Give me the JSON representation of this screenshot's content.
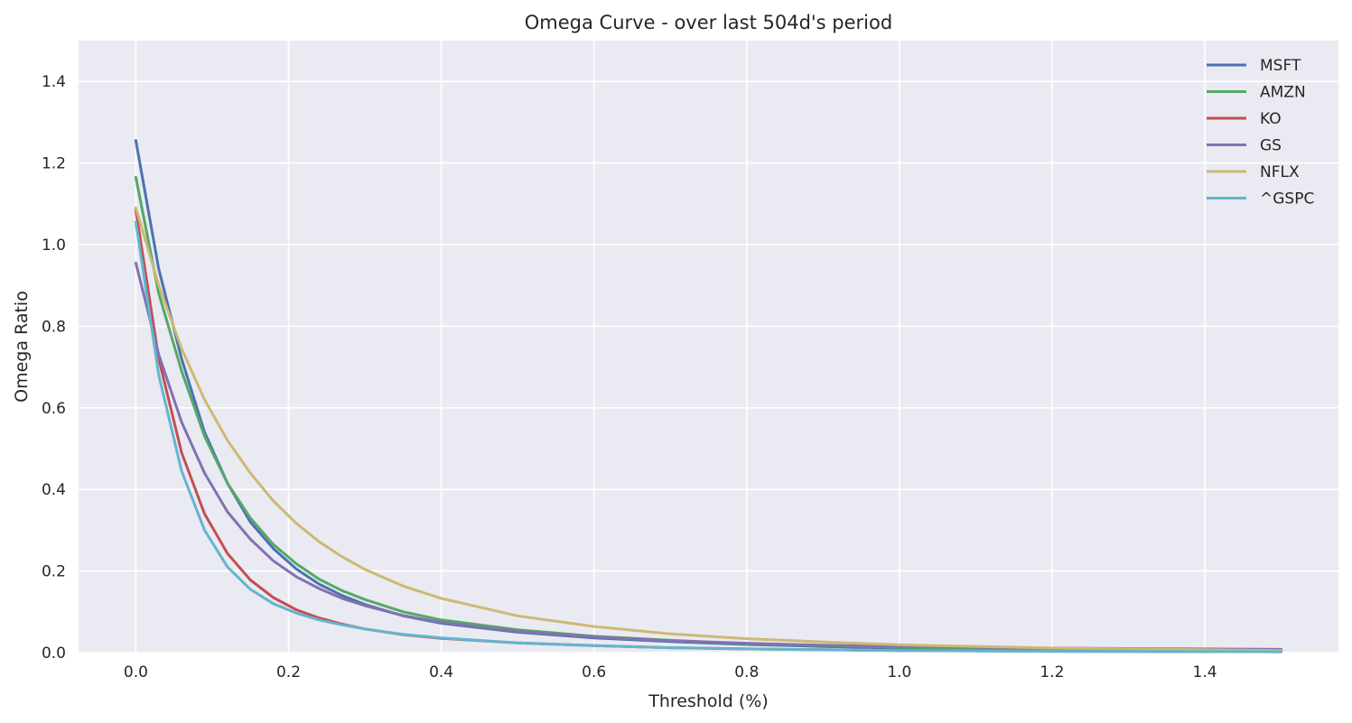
{
  "chart_data": {
    "type": "line",
    "title": "Omega Curve - over last 504d's period",
    "xlabel": "Threshold (%)",
    "ylabel": "Omega Ratio",
    "xlim": [
      -0.075,
      1.575
    ],
    "ylim": [
      0,
      1.5
    ],
    "xticks": [
      0.0,
      0.2,
      0.4,
      0.6,
      0.8,
      1.0,
      1.2,
      1.4
    ],
    "xtick_labels": [
      "0.0",
      "0.2",
      "0.4",
      "0.6",
      "0.8",
      "1.0",
      "1.2",
      "1.4"
    ],
    "yticks": [
      0.0,
      0.2,
      0.4,
      0.6,
      0.8,
      1.0,
      1.2,
      1.4
    ],
    "ytick_labels": [
      "0.0",
      "0.2",
      "0.4",
      "0.6",
      "0.8",
      "1.0",
      "1.2",
      "1.4"
    ],
    "grid": true,
    "background": "#eaeaf2",
    "legend_position": "top-right",
    "x": [
      0.0,
      0.03,
      0.06,
      0.09,
      0.12,
      0.15,
      0.18,
      0.21,
      0.24,
      0.27,
      0.3,
      0.35,
      0.4,
      0.5,
      0.6,
      0.7,
      0.8,
      0.9,
      1.0,
      1.2,
      1.5
    ],
    "series": [
      {
        "name": "MSFT",
        "color": "#4c72b0",
        "values": [
          1.255,
          0.94,
          0.72,
          0.54,
          0.415,
          0.32,
          0.255,
          0.205,
          0.168,
          0.14,
          0.118,
          0.09,
          0.072,
          0.05,
          0.036,
          0.027,
          0.02,
          0.015,
          0.011,
          0.007,
          0.004
        ]
      },
      {
        "name": "AMZN",
        "color": "#55a868",
        "values": [
          1.165,
          0.88,
          0.69,
          0.53,
          0.415,
          0.33,
          0.265,
          0.218,
          0.18,
          0.152,
          0.13,
          0.1,
          0.08,
          0.056,
          0.04,
          0.03,
          0.022,
          0.017,
          0.013,
          0.008,
          0.005
        ]
      },
      {
        "name": "KO",
        "color": "#c44e52",
        "values": [
          1.085,
          0.72,
          0.49,
          0.34,
          0.243,
          0.178,
          0.135,
          0.105,
          0.085,
          0.07,
          0.058,
          0.044,
          0.035,
          0.024,
          0.017,
          0.012,
          0.009,
          0.007,
          0.005,
          0.003,
          0.002
        ]
      },
      {
        "name": "GS",
        "color": "#8172b2",
        "values": [
          0.955,
          0.73,
          0.565,
          0.44,
          0.345,
          0.278,
          0.225,
          0.186,
          0.157,
          0.133,
          0.115,
          0.091,
          0.074,
          0.052,
          0.038,
          0.029,
          0.023,
          0.018,
          0.015,
          0.011,
          0.008
        ]
      },
      {
        "name": "NFLX",
        "color": "#ccb974",
        "values": [
          1.09,
          0.9,
          0.745,
          0.62,
          0.52,
          0.44,
          0.372,
          0.317,
          0.272,
          0.235,
          0.204,
          0.163,
          0.133,
          0.09,
          0.064,
          0.046,
          0.034,
          0.026,
          0.019,
          0.011,
          0.005
        ]
      },
      {
        "name": "^GSPC",
        "color": "#64b5cd",
        "values": [
          1.055,
          0.68,
          0.445,
          0.3,
          0.21,
          0.155,
          0.12,
          0.097,
          0.08,
          0.068,
          0.058,
          0.045,
          0.036,
          0.024,
          0.017,
          0.012,
          0.009,
          0.007,
          0.005,
          0.003,
          0.002
        ]
      }
    ]
  }
}
